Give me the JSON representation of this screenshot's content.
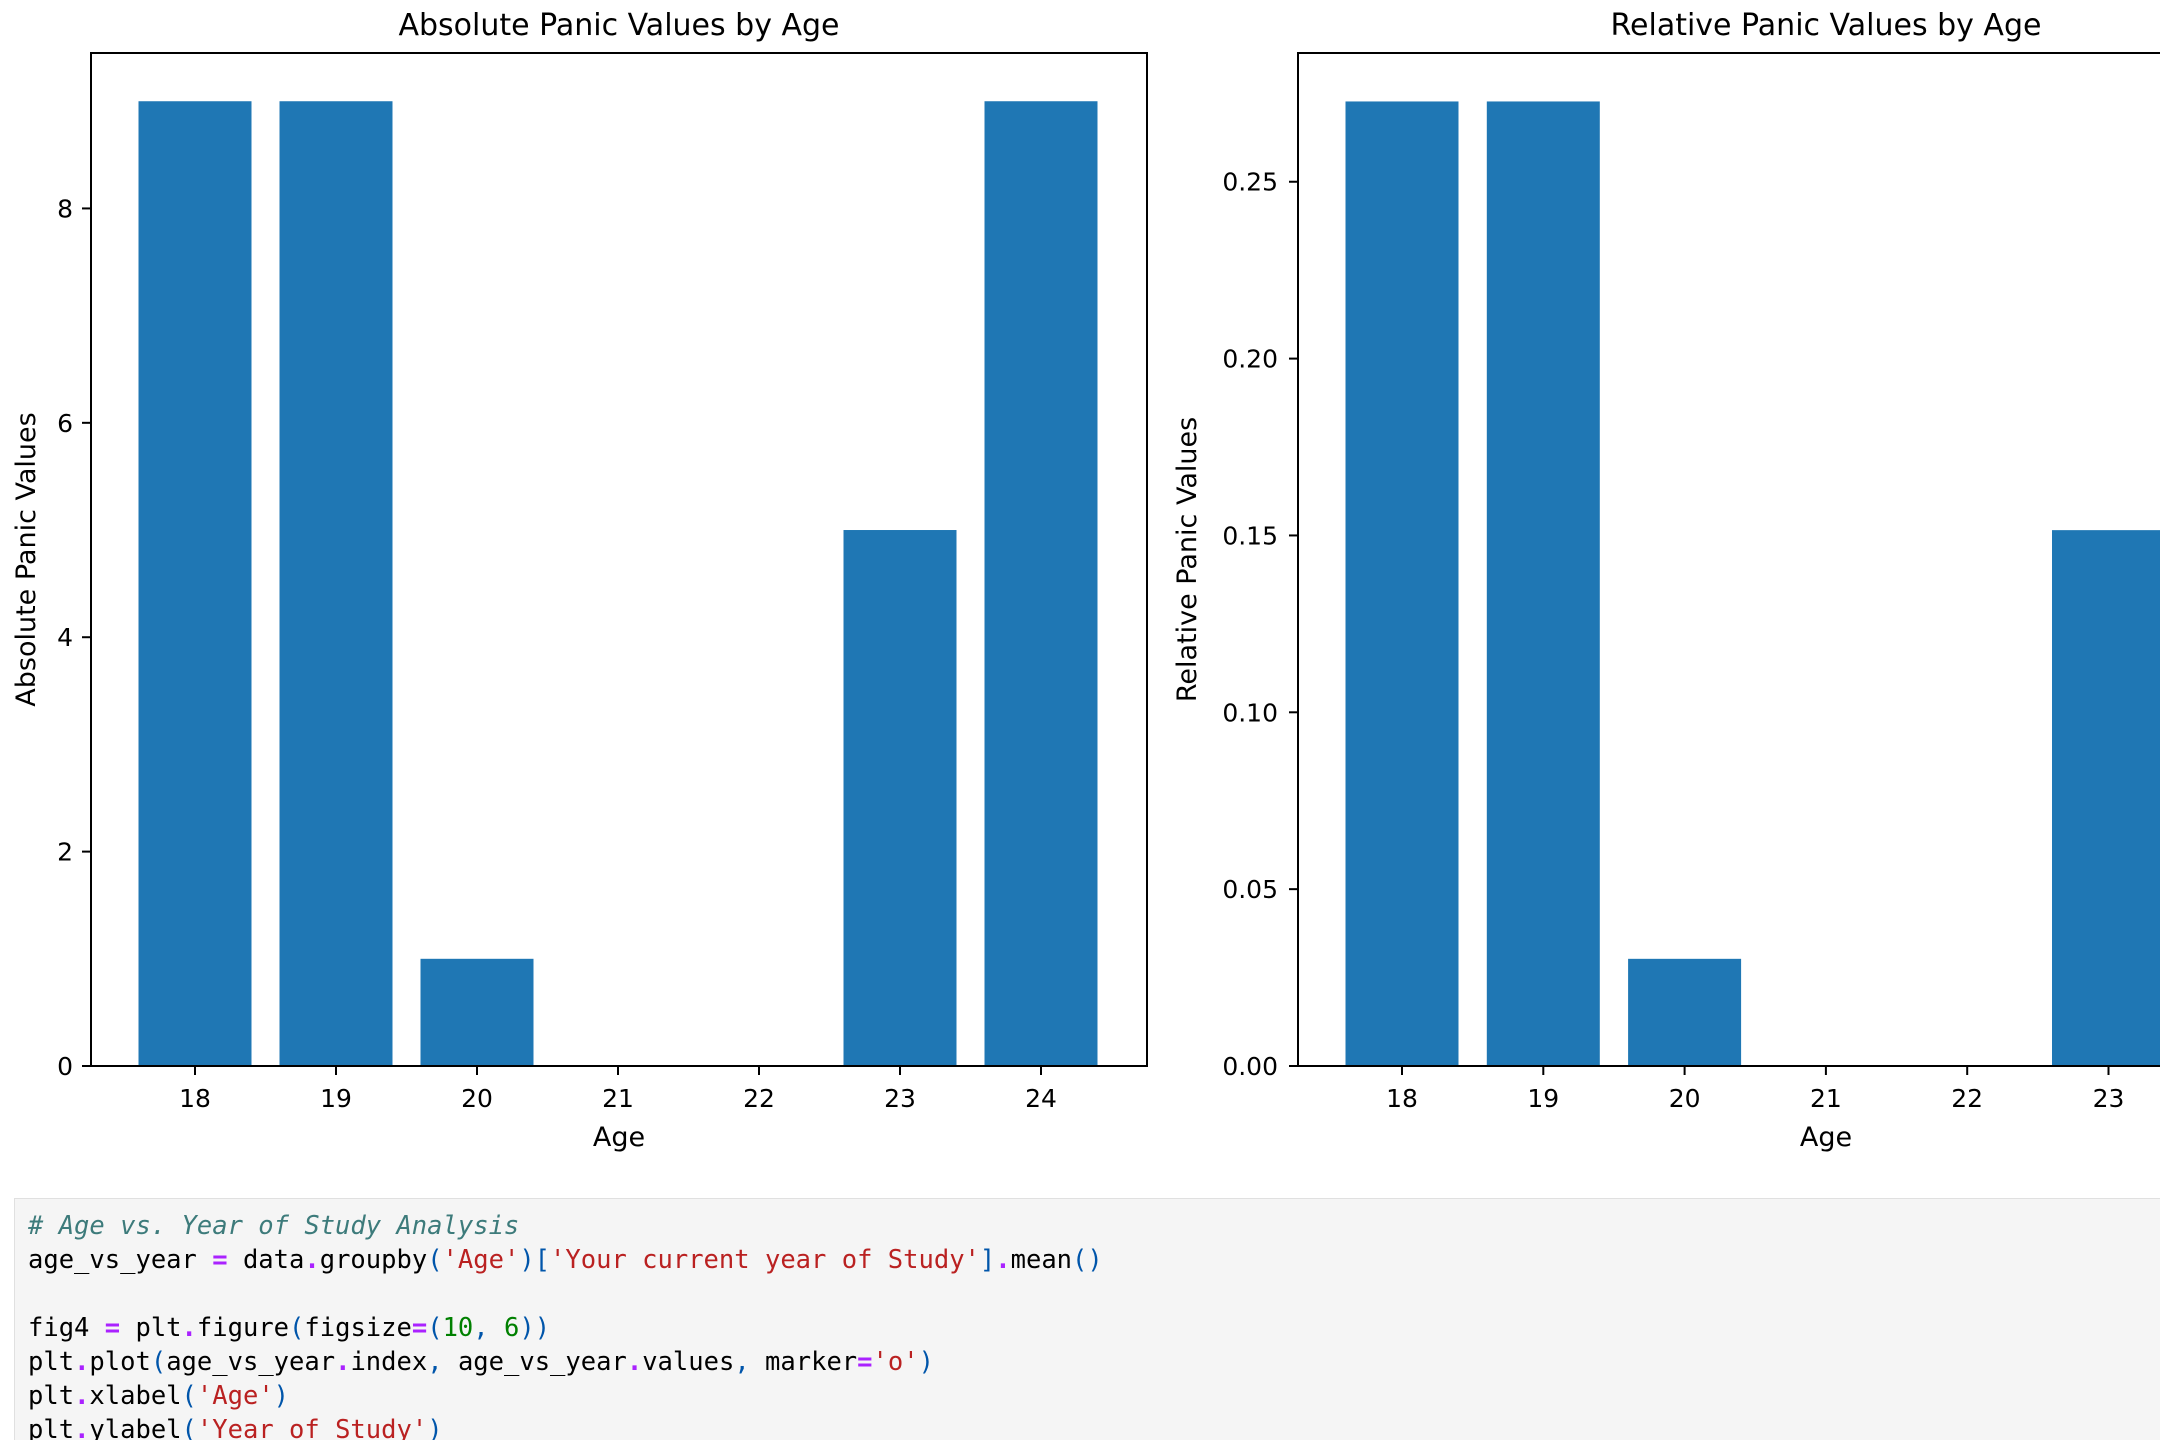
{
  "chart_data": [
    {
      "type": "bar",
      "title": "Absolute Panic Values by Age",
      "xlabel": "Age",
      "ylabel": "Absolute Panic Values",
      "categories": [
        "18",
        "19",
        "20",
        "21",
        "22",
        "23",
        "24"
      ],
      "values": [
        9,
        9,
        1,
        0,
        0,
        5,
        9
      ],
      "ylim": [
        0,
        9.45
      ],
      "yticks": [
        "0",
        "2",
        "4",
        "6",
        "8"
      ],
      "ytick_values": [
        0,
        2,
        4,
        6,
        8
      ],
      "bar_color": "#1f77b4"
    },
    {
      "type": "bar",
      "title": "Relative Panic Values by Age",
      "xlabel": "Age",
      "ylabel": "Relative Panic Values",
      "categories": [
        "18",
        "19",
        "20",
        "21",
        "22",
        "23"
      ],
      "values": [
        0.2727,
        0.2727,
        0.0303,
        0,
        0,
        0.1515
      ],
      "ylim": [
        0,
        0.2864
      ],
      "yticks": [
        "0.00",
        "0.05",
        "0.10",
        "0.15",
        "0.20",
        "0.25"
      ],
      "ytick_values": [
        0,
        0.05,
        0.1,
        0.15,
        0.2,
        0.25
      ],
      "bar_color": "#1f77b4"
    }
  ],
  "code_cell": {
    "lines": [
      [
        {
          "t": "comment",
          "v": "# Age vs. Year of Study Analysis"
        }
      ],
      [
        {
          "t": "name",
          "v": "age_vs_year "
        },
        {
          "t": "op",
          "v": "="
        },
        {
          "t": "name",
          "v": " data"
        },
        {
          "t": "op",
          "v": "."
        },
        {
          "t": "name",
          "v": "groupby"
        },
        {
          "t": "punc",
          "v": "("
        },
        {
          "t": "str",
          "v": "'Age'"
        },
        {
          "t": "punc",
          "v": ")["
        },
        {
          "t": "str",
          "v": "'Your current year of Study'"
        },
        {
          "t": "punc",
          "v": "]"
        },
        {
          "t": "op",
          "v": "."
        },
        {
          "t": "name",
          "v": "mean"
        },
        {
          "t": "punc",
          "v": "()"
        }
      ],
      [],
      [
        {
          "t": "name",
          "v": "fig4 "
        },
        {
          "t": "op",
          "v": "="
        },
        {
          "t": "name",
          "v": " plt"
        },
        {
          "t": "op",
          "v": "."
        },
        {
          "t": "name",
          "v": "figure"
        },
        {
          "t": "punc",
          "v": "("
        },
        {
          "t": "name",
          "v": "figsize"
        },
        {
          "t": "op",
          "v": "="
        },
        {
          "t": "punc",
          "v": "("
        },
        {
          "t": "num",
          "v": "10"
        },
        {
          "t": "punc",
          "v": ", "
        },
        {
          "t": "num",
          "v": "6"
        },
        {
          "t": "punc",
          "v": "))"
        }
      ],
      [
        {
          "t": "name",
          "v": "plt"
        },
        {
          "t": "op",
          "v": "."
        },
        {
          "t": "name",
          "v": "plot"
        },
        {
          "t": "punc",
          "v": "("
        },
        {
          "t": "name",
          "v": "age_vs_year"
        },
        {
          "t": "op",
          "v": "."
        },
        {
          "t": "name",
          "v": "index"
        },
        {
          "t": "punc",
          "v": ", "
        },
        {
          "t": "name",
          "v": "age_vs_year"
        },
        {
          "t": "op",
          "v": "."
        },
        {
          "t": "name",
          "v": "values"
        },
        {
          "t": "punc",
          "v": ", "
        },
        {
          "t": "name",
          "v": "marker"
        },
        {
          "t": "op",
          "v": "="
        },
        {
          "t": "str",
          "v": "'o'"
        },
        {
          "t": "punc",
          "v": ")"
        }
      ],
      [
        {
          "t": "name",
          "v": "plt"
        },
        {
          "t": "op",
          "v": "."
        },
        {
          "t": "name",
          "v": "xlabel"
        },
        {
          "t": "punc",
          "v": "("
        },
        {
          "t": "str",
          "v": "'Age'"
        },
        {
          "t": "punc",
          "v": ")"
        }
      ],
      [
        {
          "t": "name",
          "v": "plt"
        },
        {
          "t": "op",
          "v": "."
        },
        {
          "t": "name",
          "v": "ylabel"
        },
        {
          "t": "punc",
          "v": "("
        },
        {
          "t": "str",
          "v": "'Year of Study'"
        },
        {
          "t": "punc",
          "v": ")"
        }
      ]
    ]
  }
}
